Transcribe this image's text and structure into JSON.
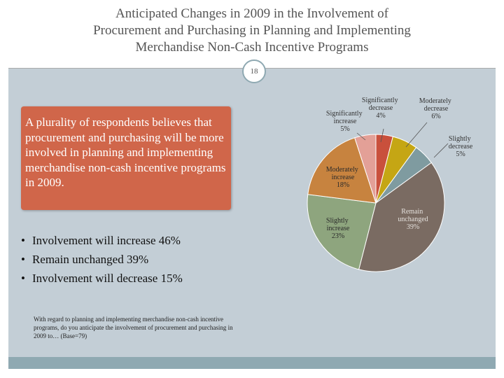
{
  "title": [
    "Anticipated Changes in 2009 in the Involvement of",
    "Procurement and Purchasing in Planning and Implementing",
    "Merchandise Non-Cash Incentive Programs"
  ],
  "slide_number": "18",
  "callout": "A plurality of respondents believes that procurement and purchasing will be more involved in planning and implementing merchandise non-cash incentive programs in 2009.",
  "bullets": [
    "Involvement will increase 46%",
    "Remain unchanged 39%",
    "Involvement will decrease 15%"
  ],
  "footnote": "With regard to planning and implementing merchandise non-cash incentive programs, do you anticipate the involvement of procurement and purchasing in 2009 to… (Base=79)",
  "chart_data": {
    "type": "pie",
    "categories": [
      "Significantly decrease",
      "Moderately decrease",
      "Slightly decrease",
      "Remain unchanged",
      "Slightly increase",
      "Moderately increase",
      "Significantly increase"
    ],
    "values": [
      4,
      6,
      5,
      39,
      23,
      18,
      5
    ],
    "value_labels": [
      "4%",
      "6%",
      "5%",
      "39%",
      "23%",
      "18%",
      "5%"
    ],
    "colors": [
      "#c9503c",
      "#c5a614",
      "#7f9ba0",
      "#7a6b62",
      "#8ea57e",
      "#c7833f",
      "#e3a097"
    ]
  }
}
